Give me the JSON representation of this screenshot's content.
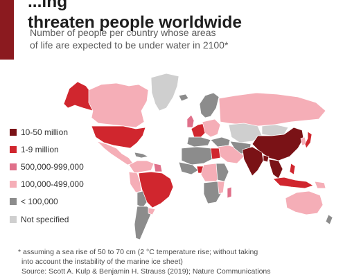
{
  "header": {
    "title_line1": "...ing",
    "title_line2": "threaten people worldwide",
    "subtitle_line1": "Number of people per country whose areas",
    "subtitle_line2": "of life are expected to be under water in 2100*"
  },
  "legend": [
    {
      "label": "10-50 million",
      "color": "#7a1216"
    },
    {
      "label": "1-9 million",
      "color": "#d0262e"
    },
    {
      "label": "500,000-999,000",
      "color": "#e0708a"
    },
    {
      "label": "100,000-499,000",
      "color": "#f5aeb7"
    },
    {
      "label": "< 100,000",
      "color": "#8c8c8c"
    },
    {
      "label": "Not specified",
      "color": "#cfcfcf"
    }
  ],
  "footnote": {
    "line1": "* assuming a sea rise of 50 to 70 cm (2 °C temperature rise; without taking",
    "line2": "into account the instability of the marine ice sheet)",
    "line3": "Source: Scott A. Kulp & Benjamin H. Strauss (2019); Nature Communications"
  },
  "colors": {
    "accent": "#8b1a1f",
    "background": "#ffffff",
    "border": "#ffffff"
  }
}
